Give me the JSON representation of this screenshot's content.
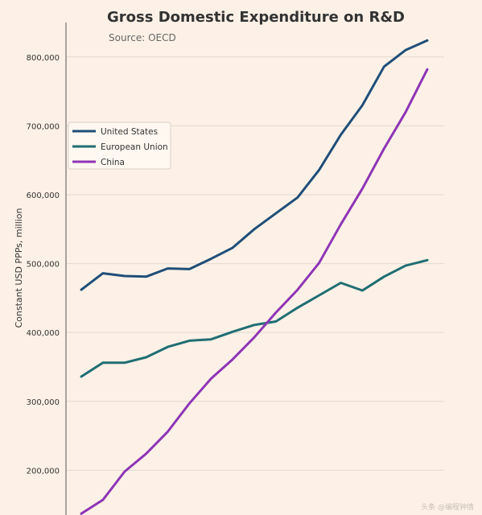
{
  "chart_data": {
    "type": "line",
    "title": "Gross Domestic Expenditure on R&D",
    "subtitle": "Source: OECD",
    "xlabel": "",
    "ylabel": "Constant USD PPPs, million",
    "ylim": [
      135000,
      850000
    ],
    "yticks": [
      200000,
      300000,
      400000,
      500000,
      600000,
      700000,
      800000
    ],
    "ytick_labels": [
      "200,000",
      "300,000",
      "400,000",
      "500,000",
      "600,000",
      "700,000",
      "800,000"
    ],
    "grid": "horizontal",
    "legend_position": "left",
    "colors": {
      "background": "#fdf1e7",
      "grid": "#e3d8cf",
      "axis": "#555555",
      "text": "#333333"
    },
    "series": [
      {
        "name": "United States",
        "color": "#1f4e79",
        "values": [
          462000,
          486000,
          482000,
          481000,
          493000,
          492000,
          507000,
          523000,
          550000,
          573000,
          596000,
          636000,
          687000,
          730000,
          786000,
          810000,
          824000
        ]
      },
      {
        "name": "European Union",
        "color": "#1f6e73",
        "values": [
          336000,
          356000,
          356000,
          364000,
          379000,
          388000,
          390000,
          401000,
          411000,
          416000,
          436000,
          454000,
          472000,
          461000,
          481000,
          497000,
          505000
        ]
      },
      {
        "name": "China",
        "color": "#8e35b6",
        "values": [
          137000,
          157000,
          198000,
          224000,
          256000,
          297000,
          333000,
          361000,
          393000,
          429000,
          462000,
          501000,
          557000,
          609000,
          667000,
          720000,
          782000
        ]
      }
    ]
  },
  "watermark": "头条 @编程钟情"
}
